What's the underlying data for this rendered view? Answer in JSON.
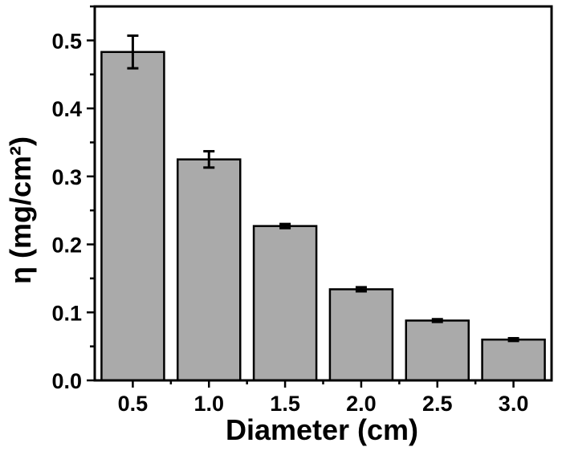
{
  "chart_data": {
    "type": "bar",
    "categories": [
      "0.5",
      "1.0",
      "1.5",
      "2.0",
      "2.5",
      "3.0"
    ],
    "values": [
      0.483,
      0.325,
      0.227,
      0.134,
      0.088,
      0.06
    ],
    "errors": [
      0.024,
      0.012,
      0.003,
      0.003,
      0.002,
      0.002
    ],
    "xlabel": "Diameter (cm)",
    "ylabel": "η (mg/cm²)",
    "yticks": [
      "0.0",
      "0.1",
      "0.2",
      "0.3",
      "0.4",
      "0.5"
    ],
    "ylim": [
      0,
      0.55
    ],
    "grid": false,
    "legend": "none",
    "bar_color": "#aaaaaa"
  }
}
